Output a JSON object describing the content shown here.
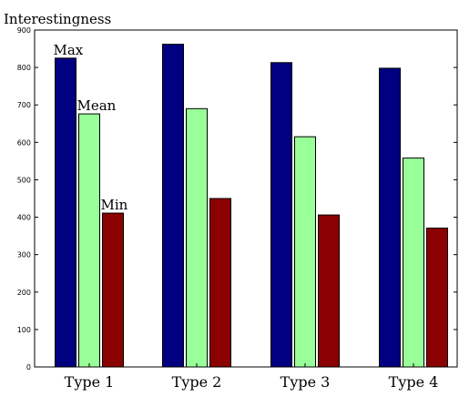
{
  "chart_data": {
    "type": "bar",
    "title": "Interestingness",
    "xlabel": "",
    "ylabel": "",
    "ylim": [
      0,
      900
    ],
    "yticks": [
      0,
      100,
      200,
      300,
      400,
      500,
      600,
      700,
      800,
      900
    ],
    "categories": [
      "Type 1",
      "Type 2",
      "Type 3",
      "Type 4"
    ],
    "grid": false,
    "series": [
      {
        "name": "Max",
        "color": "#000080",
        "values": [
          825,
          862,
          813,
          798
        ]
      },
      {
        "name": "Mean",
        "color": "#99ff99",
        "values": [
          676,
          690,
          615,
          558
        ]
      },
      {
        "name": "Min",
        "color": "#8b0000",
        "values": [
          411,
          450,
          406,
          371
        ]
      }
    ],
    "annotations": [
      "Max",
      "Mean",
      "Min"
    ]
  }
}
